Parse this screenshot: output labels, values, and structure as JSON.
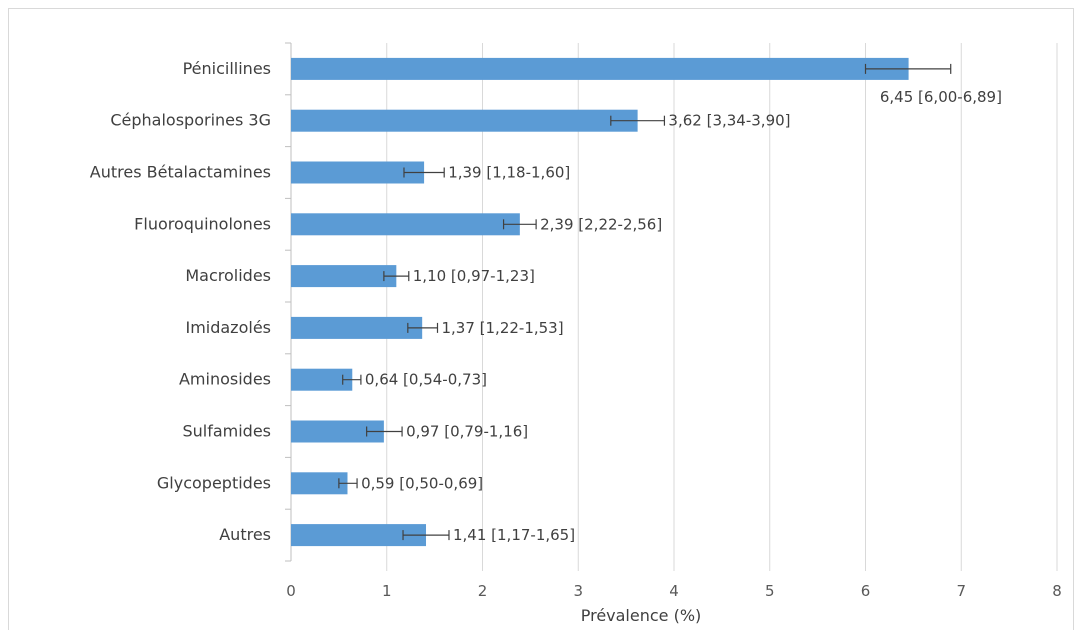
{
  "chart_data": {
    "type": "bar",
    "orientation": "horizontal",
    "title": "",
    "xlabel": "Prévalence (%)",
    "ylabel": "",
    "xlim": [
      0,
      8
    ],
    "x_ticks": [
      "0",
      "1",
      "2",
      "3",
      "4",
      "5",
      "6",
      "7",
      "8"
    ],
    "grid": "vertical",
    "bar_color": "#5b9bd5",
    "categories": [
      "Pénicillines",
      "Céphalosporines 3G",
      "Autres Bétalactamines",
      "Fluoroquinolones",
      "Macrolides",
      "Imidazolés",
      "Aminosides",
      "Sulfamides",
      "Glycopeptides",
      "Autres"
    ],
    "values": [
      6.45,
      3.62,
      1.39,
      2.39,
      1.1,
      1.37,
      0.64,
      0.97,
      0.59,
      1.41
    ],
    "ci_low": [
      6.0,
      3.34,
      1.18,
      2.22,
      0.97,
      1.22,
      0.54,
      0.79,
      0.5,
      1.17
    ],
    "ci_high": [
      6.89,
      3.9,
      1.6,
      2.56,
      1.23,
      1.53,
      0.73,
      1.16,
      0.69,
      1.65
    ],
    "data_labels": [
      "6,45 [6,00-6,89]",
      "3,62 [3,34-3,90]",
      "1,39 [1,18-1,60]",
      "2,39 [2,22-2,56]",
      "1,10 [0,97-1,23]",
      "1,37 [1,22-1,53]",
      "0,64 [0,54-0,73]",
      "0,97 [0,79-1,16]",
      "0,59 [0,50-0,69]",
      "1,41 [1,17-1,65]"
    ]
  }
}
